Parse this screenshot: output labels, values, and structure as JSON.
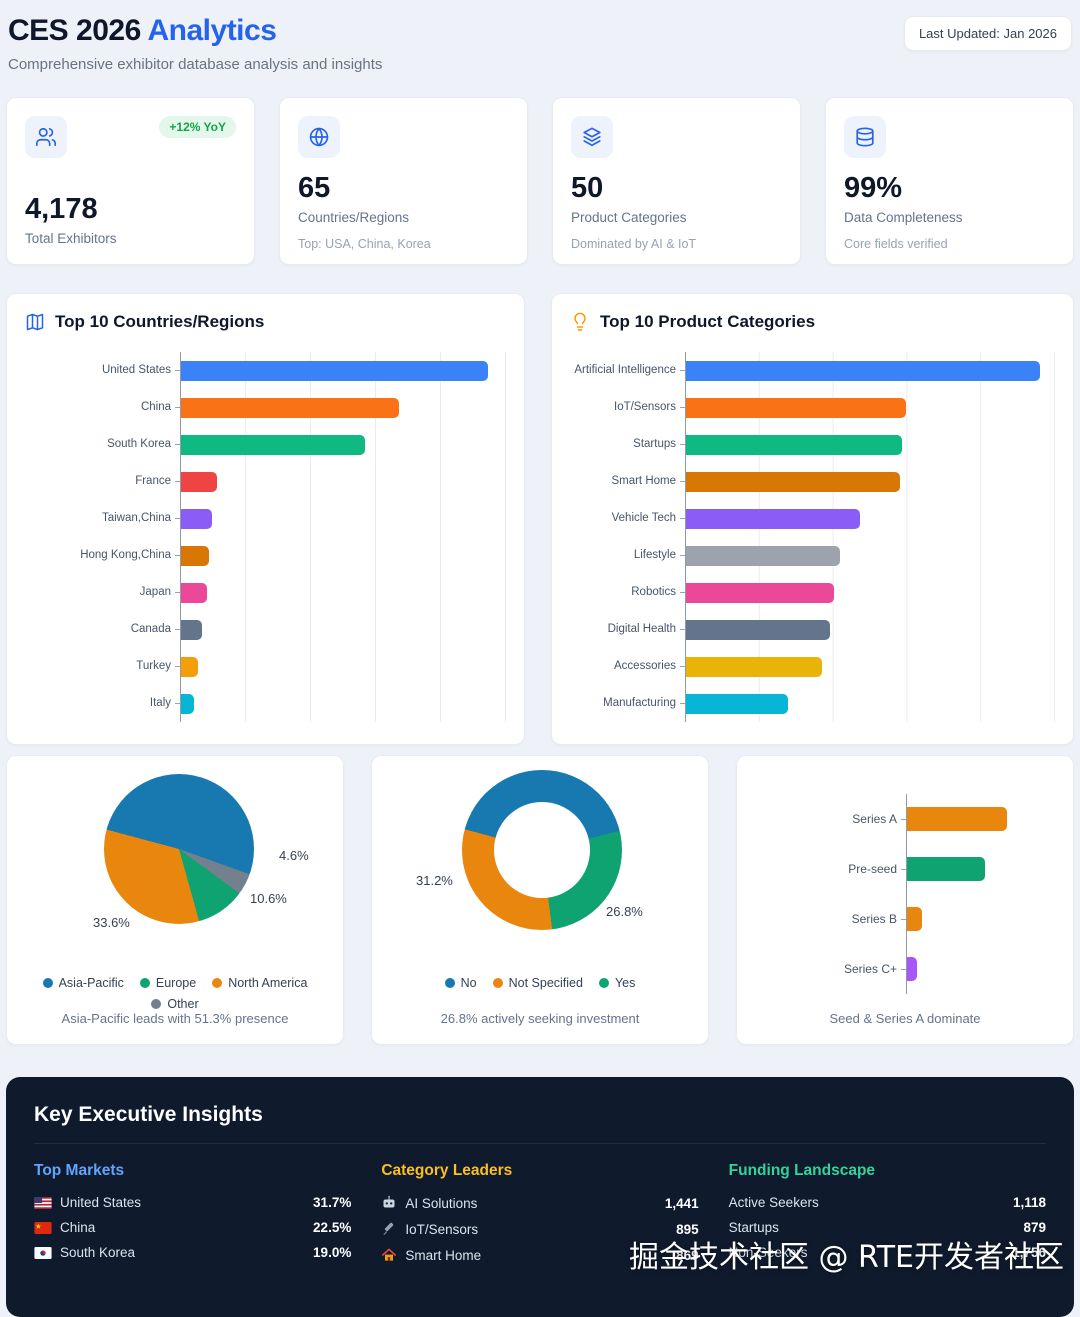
{
  "accent_color": "#2563eb",
  "header": {
    "title_main": "CES 2026",
    "title_accent": "Analytics",
    "subtitle": "Comprehensive exhibitor database analysis and insights",
    "last_updated": "Last Updated: Jan 2026"
  },
  "stat_cards": [
    {
      "icon": "users-icon",
      "badge": "+12% YoY",
      "value": "4,178",
      "label": "Total Exhibitors"
    },
    {
      "icon": "globe-icon",
      "value": "65",
      "label": "Countries/Regions",
      "note": "Top: USA, China, Korea"
    },
    {
      "icon": "layers-icon",
      "value": "50",
      "label": "Product Categories",
      "note": "Dominated by AI & IoT"
    },
    {
      "icon": "database-icon",
      "value": "99%",
      "label": "Data Completeness",
      "note": "Core fields verified"
    }
  ],
  "chart_data": [
    {
      "type": "bar",
      "orientation": "horizontal",
      "title": "Top 10 Countries/Regions",
      "categories": [
        "United States",
        "China",
        "South Korea",
        "France",
        "Taiwan,China",
        "Hong Kong,China",
        "Japan",
        "Canada",
        "Turkey",
        "Italy"
      ],
      "values": [
        1324,
        940,
        794,
        154,
        135,
        121,
        112,
        89,
        75,
        56
      ],
      "colors": [
        "#3b82f6",
        "#f97316",
        "#10b981",
        "#ef4444",
        "#8b5cf6",
        "#d97706",
        "#ec4899",
        "#64748b",
        "#f59e0b",
        "#06b6d4"
      ],
      "xlim": [
        0,
        1400
      ],
      "grid": true
    },
    {
      "type": "bar",
      "orientation": "horizontal",
      "title": "Top 10 Product Categories",
      "categories": [
        "Artificial Intelligence",
        "IoT/Sensors",
        "Startups",
        "Smart Home",
        "Vehicle Tech",
        "Lifestyle",
        "Robotics",
        "Digital Health",
        "Accessories",
        "Manufacturing"
      ],
      "values": [
        1441,
        895,
        879,
        869,
        707,
        627,
        601,
        585,
        553,
        415
      ],
      "colors": [
        "#3b82f6",
        "#f97316",
        "#10b981",
        "#d97706",
        "#8b5cf6",
        "#9ca3af",
        "#ec4899",
        "#64748b",
        "#eab308",
        "#06b6d4"
      ],
      "xlim": [
        0,
        1500
      ],
      "grid": true
    },
    {
      "type": "pie",
      "segments": [
        {
          "label": "Asia-Pacific",
          "value": 51.3,
          "color": "#1878b0"
        },
        {
          "label": "Other",
          "value": 4.6,
          "color": "#74808d"
        },
        {
          "label": "Europe",
          "value": 10.6,
          "color": "#0ea371"
        },
        {
          "label": "North America",
          "value": 33.6,
          "color": "#e8860d"
        }
      ],
      "start_angle": 285,
      "legend": [
        "Asia-Pacific",
        "Europe",
        "North America",
        "Other"
      ],
      "labels_shown": [
        "4.6%",
        "10.6%",
        "33.6%"
      ],
      "caption": "Asia-Pacific leads with 51.3% presence"
    },
    {
      "type": "donut",
      "segments": [
        {
          "label": "No",
          "value": 42.0,
          "color": "#1878b0"
        },
        {
          "label": "Yes",
          "value": 26.8,
          "color": "#0ea371"
        },
        {
          "label": "Not Specified",
          "value": 31.2,
          "color": "#e8860d"
        }
      ],
      "start_angle": 285,
      "legend": [
        "No",
        "Not Specified",
        "Yes"
      ],
      "labels_shown": [
        "31.2%",
        "26.8%"
      ],
      "caption": "26.8% actively seeking investment"
    },
    {
      "type": "bar",
      "orientation": "horizontal",
      "title": "",
      "categories": [
        "Series A",
        "Pre-seed",
        "Series B",
        "Series C+"
      ],
      "values": [
        460,
        360,
        70,
        45
      ],
      "colors": [
        "#e8860d",
        "#0ea371",
        "#e8860d",
        "#a855f7"
      ],
      "xlim": [
        0,
        700
      ],
      "grid": false,
      "caption": "Seed & Series A dominate"
    }
  ],
  "insights": {
    "title": "Key Executive Insights",
    "columns": [
      {
        "heading": "Top Markets",
        "heading_color": "#60a5fa",
        "rows": [
          {
            "icon": "us-flag-icon",
            "label": "United States",
            "value": "31.7%"
          },
          {
            "icon": "china-flag-icon",
            "label": "China",
            "value": "22.5%"
          },
          {
            "icon": "korea-flag-icon",
            "label": "South Korea",
            "value": "19.0%"
          }
        ]
      },
      {
        "heading": "Category Leaders",
        "heading_color": "#fbbf24",
        "rows": [
          {
            "icon": "robot-icon",
            "label": "AI Solutions",
            "value": "1,441"
          },
          {
            "icon": "iot-sensors-icon",
            "label": "IoT/Sensors",
            "value": "895"
          },
          {
            "icon": "house-icon",
            "label": "Smart Home",
            "value": "869"
          }
        ]
      },
      {
        "heading": "Funding Landscape",
        "heading_color": "#34d399",
        "rows": [
          {
            "label": "Active Seekers",
            "value": "1,118"
          },
          {
            "label": "Startups",
            "value": "879"
          },
          {
            "label": "Non-Seekers",
            "value": "1,756"
          }
        ]
      }
    ]
  },
  "watermark": "掘金技术社区 @ RTE开发者社区"
}
